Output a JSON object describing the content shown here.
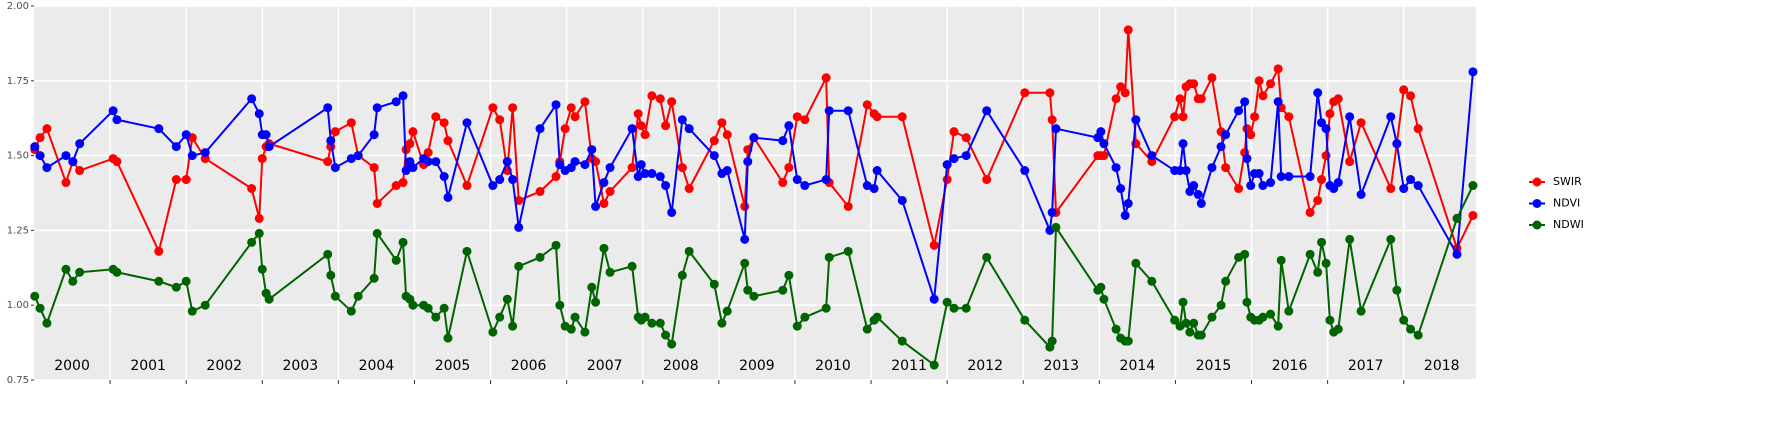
{
  "chart_data": {
    "type": "line",
    "x": [
      2000.01,
      2000.08,
      2000.17,
      2000.42,
      2000.51,
      2000.6,
      2001.04,
      2001.09,
      2001.64,
      2001.87,
      2002.0,
      2002.08,
      2002.25,
      2002.86,
      2002.96,
      2003.0,
      2003.05,
      2003.09,
      2003.86,
      2003.9,
      2003.96,
      2004.17,
      2004.26,
      2004.47,
      2004.51,
      2004.76,
      2004.85,
      2004.89,
      2004.94,
      2004.98,
      2005.12,
      2005.18,
      2005.28,
      2005.39,
      2005.44,
      2005.69,
      2006.03,
      2006.12,
      2006.22,
      2006.29,
      2006.37,
      2006.65,
      2006.86,
      2006.91,
      2006.98,
      2007.06,
      2007.11,
      2007.24,
      2007.33,
      2007.38,
      2007.49,
      2007.57,
      2007.86,
      2007.94,
      2007.98,
      2008.03,
      2008.12,
      2008.23,
      2008.3,
      2008.38,
      2008.52,
      2008.61,
      2008.94,
      2009.04,
      2009.11,
      2009.34,
      2009.38,
      2009.46,
      2009.84,
      2009.92,
      2010.03,
      2010.13,
      2010.41,
      2010.45,
      2010.7,
      2010.95,
      2011.04,
      2011.08,
      2011.41,
      2011.83,
      2012.0,
      2012.09,
      2012.25,
      2012.52,
      2013.02,
      2013.35,
      2013.38,
      2013.43,
      2013.98,
      2014.02,
      2014.06,
      2014.22,
      2014.28,
      2014.34,
      2014.38,
      2014.48,
      2014.69,
      2014.99,
      2015.06,
      2015.1,
      2015.14,
      2015.19,
      2015.24,
      2015.3,
      2015.34,
      2015.48,
      2015.6,
      2015.66,
      2015.83,
      2015.91,
      2015.94,
      2015.99,
      2016.04,
      2016.1,
      2016.15,
      2016.25,
      2016.35,
      2016.39,
      2016.49,
      2016.77,
      2016.87,
      2016.92,
      2016.98,
      2017.03,
      2017.08,
      2017.14,
      2017.29,
      2017.44,
      2017.83,
      2017.91,
      2018.0,
      2018.09,
      2018.19,
      2018.7,
      2018.91
    ],
    "series": [
      {
        "name": "SWIR",
        "color": "#ff0000",
        "values": [
          1.52,
          1.56,
          1.59,
          1.41,
          1.48,
          1.45,
          1.49,
          1.48,
          1.18,
          1.42,
          1.42,
          1.56,
          1.49,
          1.39,
          1.29,
          1.49,
          1.53,
          1.54,
          1.48,
          1.53,
          1.58,
          1.61,
          1.5,
          1.46,
          1.34,
          1.4,
          1.41,
          1.52,
          1.54,
          1.58,
          1.47,
          1.51,
          1.63,
          1.61,
          1.55,
          1.4,
          1.66,
          1.62,
          1.45,
          1.66,
          1.35,
          1.38,
          1.43,
          1.48,
          1.59,
          1.66,
          1.63,
          1.68,
          1.49,
          1.48,
          1.34,
          1.38,
          1.46,
          1.64,
          1.6,
          1.57,
          1.7,
          1.69,
          1.6,
          1.68,
          1.46,
          1.39,
          1.55,
          1.61,
          1.57,
          1.33,
          1.52,
          1.56,
          1.41,
          1.46,
          1.63,
          1.62,
          1.76,
          1.41,
          1.33,
          1.67,
          1.64,
          1.63,
          1.63,
          1.2,
          1.42,
          1.58,
          1.56,
          1.42,
          1.71,
          1.71,
          1.62,
          1.31,
          1.5,
          1.5,
          1.5,
          1.69,
          1.73,
          1.71,
          1.92,
          1.54,
          1.48,
          1.63,
          1.69,
          1.63,
          1.73,
          1.74,
          1.74,
          1.69,
          1.69,
          1.76,
          1.58,
          1.46,
          1.39,
          1.51,
          1.59,
          1.57,
          1.63,
          1.75,
          1.7,
          1.74,
          1.79,
          1.66,
          1.63,
          1.31,
          1.35,
          1.42,
          1.5,
          1.64,
          1.68,
          1.69,
          1.48,
          1.61,
          1.39,
          1.54,
          1.72,
          1.7,
          1.59,
          1.19,
          1.3
        ]
      },
      {
        "name": "NDVI",
        "color": "#0000ff",
        "values": [
          1.53,
          1.5,
          1.46,
          1.5,
          1.48,
          1.54,
          1.65,
          1.62,
          1.59,
          1.53,
          1.57,
          1.5,
          1.51,
          1.69,
          1.64,
          1.57,
          1.57,
          1.53,
          1.66,
          1.55,
          1.46,
          1.49,
          1.5,
          1.57,
          1.66,
          1.68,
          1.7,
          1.45,
          1.48,
          1.46,
          1.49,
          1.48,
          1.48,
          1.43,
          1.36,
          1.61,
          1.4,
          1.42,
          1.48,
          1.42,
          1.26,
          1.59,
          1.67,
          1.47,
          1.45,
          1.46,
          1.48,
          1.47,
          1.52,
          1.33,
          1.41,
          1.46,
          1.59,
          1.43,
          1.47,
          1.44,
          1.44,
          1.43,
          1.4,
          1.31,
          1.62,
          1.59,
          1.5,
          1.44,
          1.45,
          1.22,
          1.48,
          1.56,
          1.55,
          1.6,
          1.42,
          1.4,
          1.42,
          1.65,
          1.65,
          1.4,
          1.39,
          1.45,
          1.35,
          1.02,
          1.47,
          1.49,
          1.5,
          1.65,
          1.45,
          1.25,
          1.31,
          1.59,
          1.56,
          1.58,
          1.54,
          1.46,
          1.39,
          1.3,
          1.34,
          1.62,
          1.5,
          1.45,
          1.45,
          1.54,
          1.45,
          1.38,
          1.4,
          1.37,
          1.34,
          1.46,
          1.53,
          1.57,
          1.65,
          1.68,
          1.49,
          1.4,
          1.44,
          1.44,
          1.4,
          1.41,
          1.68,
          1.43,
          1.43,
          1.43,
          1.71,
          1.61,
          1.59,
          1.4,
          1.39,
          1.41,
          1.63,
          1.37,
          1.63,
          1.54,
          1.39,
          1.42,
          1.4,
          1.17,
          1.78
        ]
      },
      {
        "name": "NDWI",
        "color": "#006400",
        "values": [
          1.03,
          0.99,
          0.94,
          1.12,
          1.08,
          1.11,
          1.12,
          1.11,
          1.08,
          1.06,
          1.08,
          0.98,
          1.0,
          1.21,
          1.24,
          1.12,
          1.04,
          1.02,
          1.17,
          1.1,
          1.03,
          0.98,
          1.03,
          1.09,
          1.24,
          1.15,
          1.21,
          1.03,
          1.02,
          1.0,
          1.0,
          0.99,
          0.96,
          0.99,
          0.89,
          1.18,
          0.91,
          0.96,
          1.02,
          0.93,
          1.13,
          1.16,
          1.2,
          1.0,
          0.93,
          0.92,
          0.96,
          0.91,
          1.06,
          1.01,
          1.19,
          1.11,
          1.13,
          0.96,
          0.95,
          0.96,
          0.94,
          0.94,
          0.9,
          0.87,
          1.1,
          1.18,
          1.07,
          0.94,
          0.98,
          1.14,
          1.05,
          1.03,
          1.05,
          1.1,
          0.93,
          0.96,
          0.99,
          1.16,
          1.18,
          0.92,
          0.95,
          0.96,
          0.88,
          0.8,
          1.01,
          0.99,
          0.99,
          1.16,
          0.95,
          0.86,
          0.88,
          1.26,
          1.05,
          1.06,
          1.02,
          0.92,
          0.89,
          0.88,
          0.88,
          1.14,
          1.08,
          0.95,
          0.93,
          1.01,
          0.94,
          0.91,
          0.94,
          0.9,
          0.9,
          0.96,
          1.0,
          1.08,
          1.16,
          1.17,
          1.01,
          0.96,
          0.95,
          0.95,
          0.96,
          0.97,
          0.93,
          1.15,
          0.98,
          1.17,
          1.11,
          1.21,
          1.14,
          0.95,
          0.91,
          0.92,
          1.22,
          0.98,
          1.22,
          1.05,
          0.95,
          0.92,
          0.9,
          1.29,
          1.4
        ]
      }
    ],
    "xlim": [
      2000,
      2018.95
    ],
    "xticks": [
      {
        "value": 2000.5,
        "label": "2000"
      },
      {
        "value": 2001.5,
        "label": "2001"
      },
      {
        "value": 2002.5,
        "label": "2002"
      },
      {
        "value": 2003.5,
        "label": "2003"
      },
      {
        "value": 2004.5,
        "label": "2004"
      },
      {
        "value": 2005.5,
        "label": "2005"
      },
      {
        "value": 2006.5,
        "label": "2006"
      },
      {
        "value": 2007.5,
        "label": "2007"
      },
      {
        "value": 2008.5,
        "label": "2008"
      },
      {
        "value": 2009.5,
        "label": "2009"
      },
      {
        "value": 2010.5,
        "label": "2010"
      },
      {
        "value": 2011.5,
        "label": "2011"
      },
      {
        "value": 2012.5,
        "label": "2012"
      },
      {
        "value": 2013.5,
        "label": "2013"
      },
      {
        "value": 2014.5,
        "label": "2014"
      },
      {
        "value": 2015.5,
        "label": "2015"
      },
      {
        "value": 2016.5,
        "label": "2016"
      },
      {
        "value": 2017.5,
        "label": "2017"
      },
      {
        "value": 2018.5,
        "label": "2018"
      }
    ],
    "x_gridlines": [
      2001,
      2002,
      2003,
      2004,
      2005,
      2006,
      2007,
      2008,
      2009,
      2010,
      2011,
      2012,
      2013,
      2014,
      2015,
      2016,
      2017,
      2018
    ],
    "ylim": [
      0.75,
      2.0
    ],
    "yticks": [
      {
        "value": 0.75,
        "label": "0.75"
      },
      {
        "value": 1.0,
        "label": "1.00"
      },
      {
        "value": 1.25,
        "label": "1.25"
      },
      {
        "value": 1.5,
        "label": "1.50"
      },
      {
        "value": 1.75,
        "label": "1.75"
      },
      {
        "value": 2.0,
        "label": "2.00"
      }
    ],
    "grid": true,
    "legend": "right"
  }
}
